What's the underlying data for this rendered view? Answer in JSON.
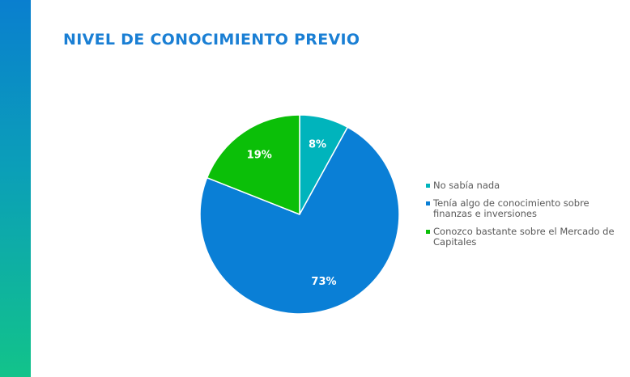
{
  "slide": {
    "title": "NIVEL DE CONOCIMIENTO PREVIO"
  },
  "colors": {
    "title": "#1a7fd4",
    "sidebar_top": "#0a7fcf",
    "sidebar_bottom": "#12c38a",
    "legend_text": "#595959"
  },
  "chart_data": {
    "type": "pie",
    "title": "",
    "legend_position": "right",
    "slices": [
      {
        "label": "No sabía nada",
        "value": 8,
        "display": "8%",
        "color": "#00b4bc"
      },
      {
        "label": "Tenía algo de conocimiento sobre finanzas e inversiones",
        "value": 73,
        "display": "73%",
        "color": "#0a7fd6"
      },
      {
        "label": "Conozco bastante sobre el Mercado de Capitales",
        "value": 19,
        "display": "19%",
        "color": "#0bbf08"
      }
    ]
  }
}
